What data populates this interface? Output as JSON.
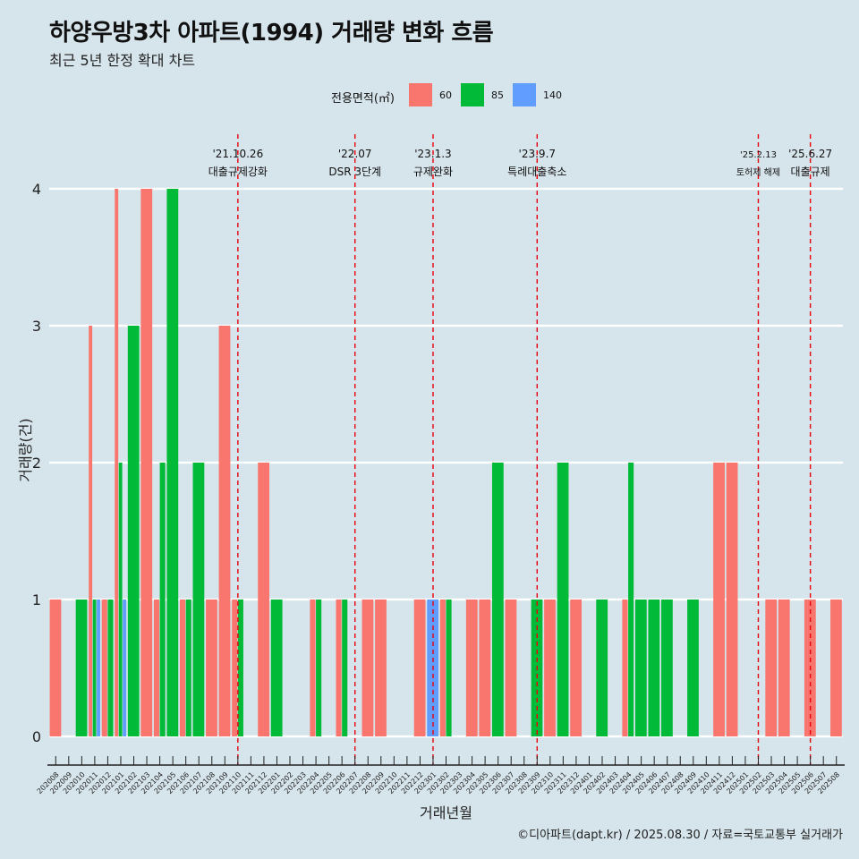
{
  "title": "하양우방3차 아파트(1994) 거래량 변화 흐름",
  "subtitle": "최근 5년 한정 확대 차트",
  "caption": "©디아파트(dapt.kr) / 2025.08.30 / 자료=국토교통부 실거래가",
  "legend": {
    "title": "전용면적(㎡)",
    "items": [
      {
        "label": "60",
        "color": "#f8766d"
      },
      {
        "label": "85",
        "color": "#00ba38"
      },
      {
        "label": "140",
        "color": "#619cff"
      }
    ]
  },
  "chart_data": {
    "type": "bar",
    "xlabel": "거래년월",
    "ylabel": "거래량(건)",
    "ylim": [
      0,
      4
    ],
    "yticks": [
      0,
      1,
      2,
      3,
      4
    ],
    "grid": true,
    "legend_position": "top",
    "categories": [
      "202008",
      "202009",
      "202010",
      "202011",
      "202012",
      "202101",
      "202102",
      "202103",
      "202104",
      "202105",
      "202106",
      "202107",
      "202108",
      "202109",
      "202110",
      "202111",
      "202112",
      "202201",
      "202202",
      "202203",
      "202204",
      "202205",
      "202206",
      "202207",
      "202208",
      "202209",
      "202210",
      "202211",
      "202212",
      "202301",
      "202302",
      "202303",
      "202304",
      "202305",
      "202306",
      "202307",
      "202308",
      "202309",
      "202310",
      "202311",
      "202312",
      "202401",
      "202402",
      "202403",
      "202404",
      "202405",
      "202406",
      "202407",
      "202408",
      "202409",
      "202410",
      "202411",
      "202412",
      "202501",
      "202502",
      "202503",
      "202504",
      "202505",
      "202506",
      "202507",
      "202508"
    ],
    "series": [
      {
        "name": "60",
        "color": "#f8766d",
        "values": [
          1,
          0,
          0,
          3,
          1,
          4,
          0,
          4,
          1,
          0,
          1,
          0,
          1,
          3,
          1,
          0,
          2,
          0,
          0,
          0,
          1,
          0,
          1,
          0,
          1,
          1,
          0,
          0,
          1,
          0,
          1,
          0,
          1,
          1,
          0,
          1,
          0,
          0,
          1,
          0,
          1,
          0,
          0,
          0,
          1,
          0,
          0,
          0,
          0,
          0,
          0,
          2,
          2,
          0,
          0,
          1,
          1,
          0,
          1,
          0,
          1
        ]
      },
      {
        "name": "85",
        "color": "#00ba38",
        "values": [
          0,
          0,
          1,
          1,
          1,
          2,
          3,
          0,
          2,
          4,
          1,
          2,
          0,
          0,
          1,
          0,
          0,
          1,
          0,
          0,
          1,
          0,
          1,
          0,
          0,
          0,
          0,
          0,
          0,
          0,
          1,
          0,
          0,
          0,
          2,
          0,
          0,
          1,
          0,
          2,
          0,
          0,
          1,
          0,
          2,
          1,
          1,
          1,
          0,
          1,
          0,
          0,
          0,
          0,
          0,
          0,
          0,
          0,
          0,
          0,
          0
        ]
      },
      {
        "name": "140",
        "color": "#619cff",
        "values": [
          0,
          0,
          0,
          1,
          0,
          1,
          0,
          0,
          0,
          0,
          0,
          0,
          0,
          0,
          0,
          0,
          0,
          0,
          0,
          0,
          0,
          0,
          0,
          0,
          0,
          0,
          0,
          0,
          0,
          1,
          0,
          0,
          0,
          0,
          0,
          0,
          0,
          0,
          0,
          0,
          0,
          0,
          0,
          0,
          0,
          0,
          0,
          0,
          0,
          0,
          0,
          0,
          0,
          0,
          0,
          0,
          0,
          0,
          0,
          0,
          0
        ]
      }
    ],
    "annotations": [
      {
        "date": "'21.10.26",
        "label": "대출규제강화",
        "at": "202110"
      },
      {
        "date": "'22.07",
        "label": "DSR 3단계",
        "at": "202207"
      },
      {
        "date": "'23.1.3",
        "label": "규제완화",
        "at": "202301"
      },
      {
        "date": "'23.9.7",
        "label": "특례대출축소",
        "at": "202309"
      },
      {
        "date": "'25.2.13",
        "label": "토허제 해제",
        "at": "202502"
      },
      {
        "date": "'25.6.27",
        "label": "대출규제",
        "at": "202506"
      }
    ]
  }
}
